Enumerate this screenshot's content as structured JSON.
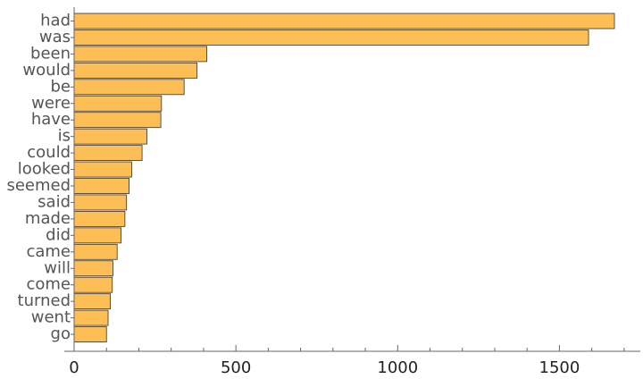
{
  "chart_data": {
    "type": "bar",
    "orientation": "horizontal",
    "title": "",
    "xlabel": "",
    "ylabel": "",
    "categories": [
      "had",
      "was",
      "been",
      "would",
      "be",
      "were",
      "have",
      "is",
      "could",
      "looked",
      "seemed",
      "said",
      "made",
      "did",
      "came",
      "will",
      "come",
      "turned",
      "went",
      "go"
    ],
    "values": [
      1670,
      1590,
      410,
      380,
      340,
      270,
      268,
      225,
      210,
      178,
      170,
      162,
      157,
      145,
      133,
      120,
      118,
      112,
      105,
      100
    ],
    "xlim": [
      0,
      1750
    ],
    "x_ticks": [
      0,
      500,
      1000,
      1500
    ],
    "x_minor_step": 100,
    "grid": false,
    "bar_color": "#FDBE56",
    "bar_edge_color": "#333333"
  }
}
